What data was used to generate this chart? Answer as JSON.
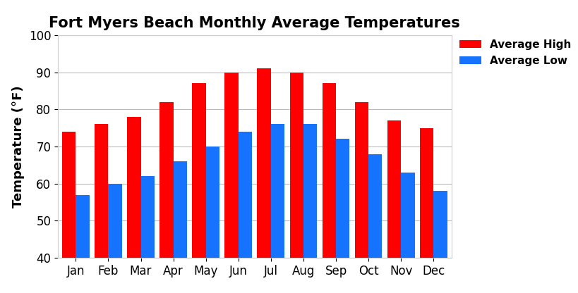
{
  "title": "Fort Myers Beach Monthly Average Temperatures",
  "ylabel": "Temperature (°F)",
  "months": [
    "Jan",
    "Feb",
    "Mar",
    "Apr",
    "May",
    "Jun",
    "Jul",
    "Aug",
    "Sep",
    "Oct",
    "Nov",
    "Dec"
  ],
  "avg_high": [
    74,
    76,
    78,
    82,
    87,
    90,
    91,
    90,
    87,
    82,
    77,
    75
  ],
  "avg_low": [
    57,
    60,
    62,
    66,
    70,
    74,
    76,
    76,
    72,
    68,
    63,
    58
  ],
  "high_color": "#FF0000",
  "low_color": "#1673FF",
  "ylim": [
    40,
    100
  ],
  "yticks": [
    40,
    50,
    60,
    70,
    80,
    90,
    100
  ],
  "legend_labels": [
    "Average High",
    "Average Low"
  ],
  "title_fontsize": 15,
  "label_fontsize": 13,
  "tick_fontsize": 12,
  "legend_fontsize": 11,
  "bar_width": 0.42,
  "background_color": "#FFFFFF",
  "grid_color": "#BBBBBB"
}
